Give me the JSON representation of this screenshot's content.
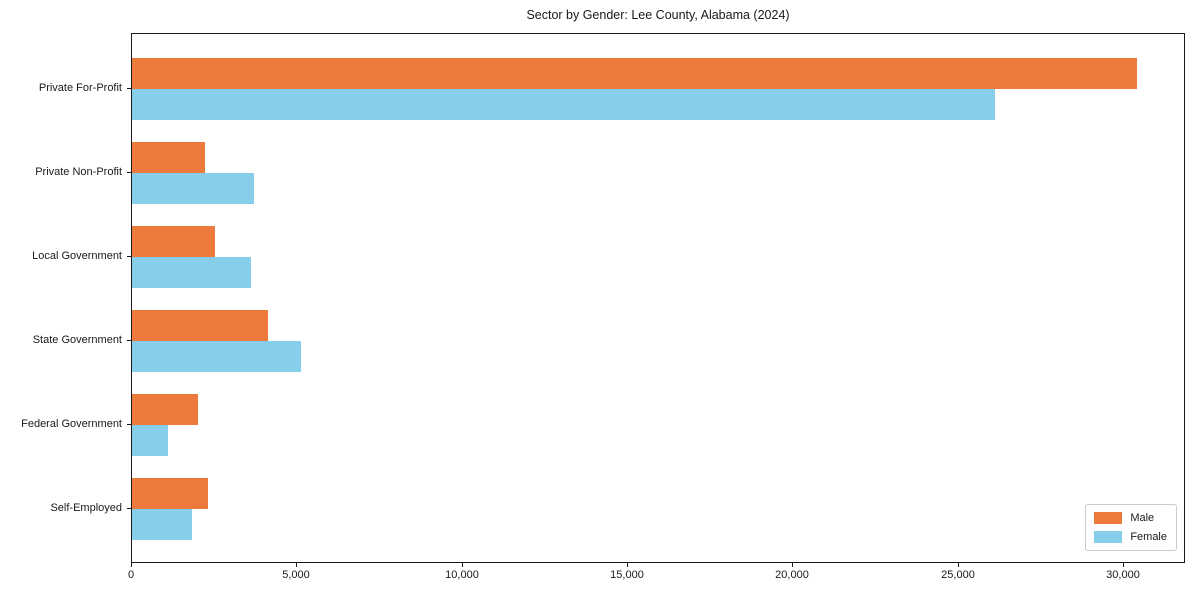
{
  "chart_data": {
    "type": "bar",
    "orientation": "horizontal",
    "title": "Sector by Gender: Lee County, Alabama (2024)",
    "categories": [
      "Private For-Profit",
      "Private Non-Profit",
      "Local Government",
      "State Government",
      "Federal Government",
      "Self-Employed"
    ],
    "series": [
      {
        "name": "Male",
        "color": "#EC7A3C",
        "values": [
          30400,
          2200,
          2500,
          4100,
          2000,
          2300
        ]
      },
      {
        "name": "Female",
        "color": "#87CEEB",
        "values": [
          26100,
          3700,
          3600,
          5100,
          1100,
          1800
        ]
      }
    ],
    "xlabel": "",
    "ylabel": "",
    "xlim": [
      0,
      31880
    ],
    "xticks": {
      "values": [
        0,
        5000,
        10000,
        15000,
        20000,
        25000,
        30000
      ],
      "labels": [
        "0",
        "5,000",
        "10,000",
        "15,000",
        "20,000",
        "25,000",
        "30,000"
      ]
    },
    "grid": false,
    "legend": {
      "position": "lower right",
      "entries": [
        "Male",
        "Female"
      ]
    }
  }
}
